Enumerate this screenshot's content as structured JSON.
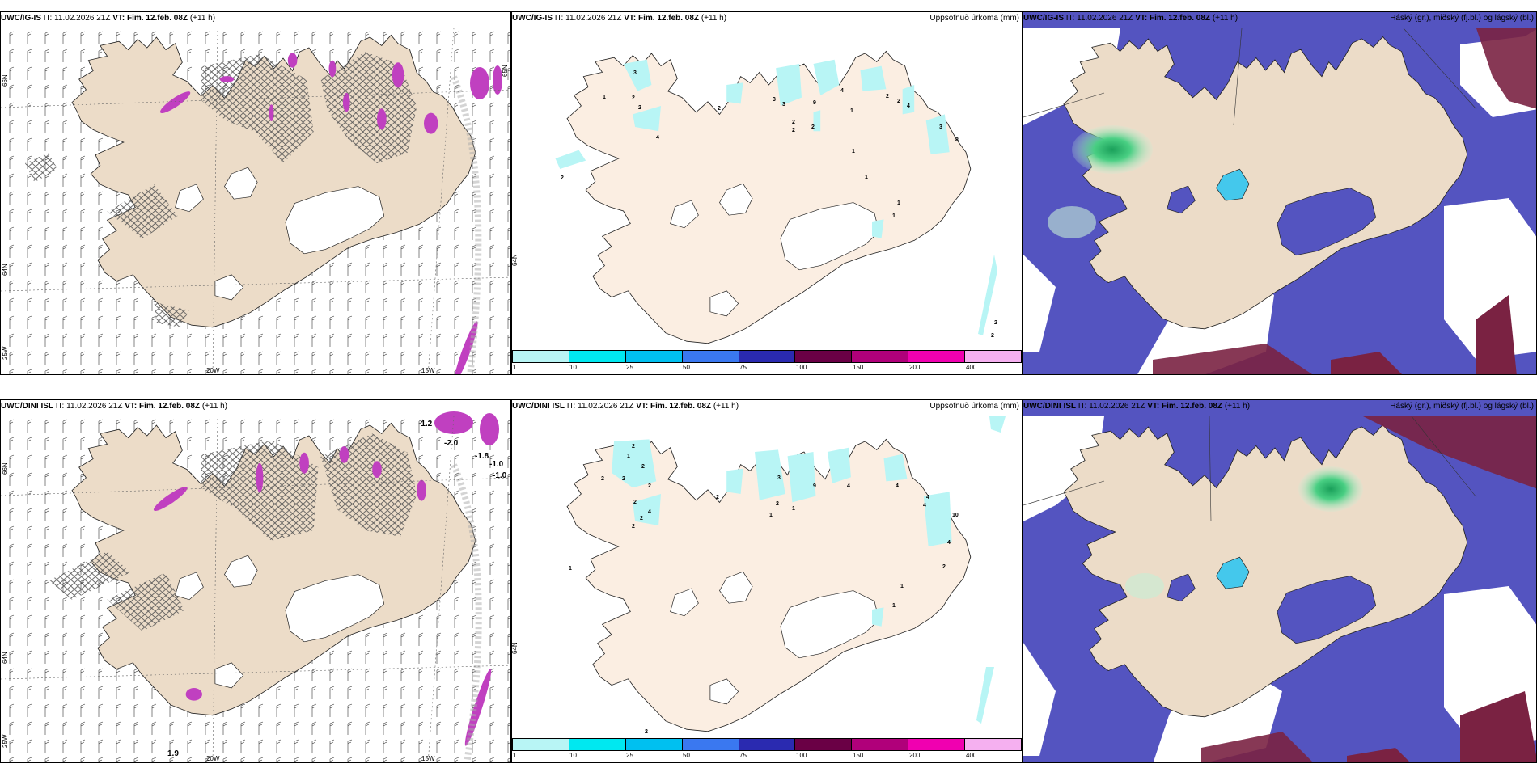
{
  "rows": [
    {
      "model": "UWC/IG-IS",
      "it_label": "IT:",
      "it_value": "11.02.2026 21Z",
      "vt_label": "VT:",
      "vt_value": "Fim. 12.feb. 08Z",
      "lead": "(+11 h)",
      "panels": {
        "wind": {
          "lat_labels": [
            "66N",
            "64N",
            "65N"
          ],
          "lon_labels": [
            "20W",
            "15W",
            "25W"
          ],
          "values": []
        },
        "precip": {
          "title": "Uppsöfnuð úrkoma (mm)",
          "side_label": "64N",
          "numbers": [
            "3",
            "1",
            "2",
            "2",
            "2",
            "3",
            "3",
            "2",
            "2",
            "4",
            "1",
            "2",
            "4",
            "2",
            "4",
            "8",
            "3",
            "9",
            "2",
            "1",
            "1",
            "1",
            "1",
            "2",
            "2",
            "2"
          ]
        },
        "cloud": {
          "title": "Háský (gr.), miðský (fj.bl.) og lágský (bl.)"
        }
      }
    },
    {
      "model": "UWC/DINI ISL",
      "it_label": "IT:",
      "it_value": "11.02.2026 21Z",
      "vt_label": "VT:",
      "vt_value": "Fim. 12.feb. 08Z",
      "lead": "(+11 h)",
      "panels": {
        "wind": {
          "lat_labels": [
            "66N",
            "64N",
            "25W"
          ],
          "lon_labels": [
            "20W",
            "15W"
          ],
          "values": [
            "-1.2",
            "-2.0",
            "-1.8",
            "-1.0",
            "-1.0",
            "1.9"
          ]
        },
        "precip": {
          "title": "Uppsöfnuð úrkoma (mm)",
          "side_label": "64N",
          "numbers": [
            "2",
            "1",
            "2",
            "2",
            "2",
            "2",
            "2",
            "4",
            "2",
            "2",
            "3",
            "2",
            "1",
            "2",
            "1",
            "9",
            "4",
            "4",
            "4",
            "10",
            "4",
            "4",
            "2",
            "1",
            "1",
            "1",
            "2"
          ]
        },
        "cloud": {
          "title": "Háský (gr.), miðský (fj.bl.) og lágský (bl.)"
        }
      }
    }
  ],
  "legend": {
    "labels": [
      "1",
      "10",
      "25",
      "50",
      "75",
      "100",
      "150",
      "200",
      "400"
    ],
    "colors": [
      "#b8f5f5",
      "#00e8f0",
      "#00c0f0",
      "#3a78f0",
      "#2a2ab0",
      "#6a0045",
      "#b0007a",
      "#f000b0",
      "#f5b0f0"
    ]
  },
  "colors": {
    "land": "#ecdcc8",
    "land_precip": "#fbeee2",
    "ice": "#ffffff",
    "sea": "#ffffff",
    "cloud_low": "#5454c0",
    "cloud_low_edge": "#3f8ef0",
    "cloud_mid": "#44c8ec",
    "cloud_high": "#7a2242",
    "cloud_green": "#33c070",
    "precip_cyan": "#b8f5f5",
    "hatch": "#555555",
    "magenta": "#c040c0"
  }
}
